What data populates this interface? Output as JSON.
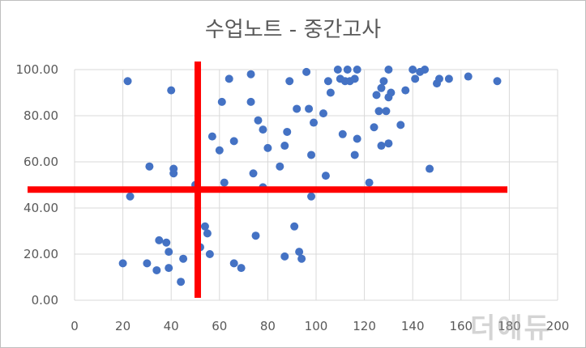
{
  "chart_data": {
    "type": "scatter",
    "title": "수업노트 - 중간고사",
    "xlabel": "",
    "ylabel": "",
    "xlim": [
      0,
      200
    ],
    "ylim": [
      0,
      100
    ],
    "x_ticks": [
      "0",
      "20",
      "40",
      "60",
      "80",
      "100",
      "120",
      "140",
      "160",
      "180",
      "200"
    ],
    "y_ticks": [
      "0.00",
      "20.00",
      "40.00",
      "60.00",
      "80.00",
      "100.00"
    ],
    "grid": "vertical-and-horizontal",
    "legend": "none",
    "point_color": "#4472c4",
    "overlay_lines": {
      "color": "#ff0000",
      "vertical_x": 51,
      "horizontal_y": 48
    },
    "points": [
      [
        20,
        16
      ],
      [
        22,
        95
      ],
      [
        23,
        45
      ],
      [
        30,
        16
      ],
      [
        31,
        58
      ],
      [
        34,
        13
      ],
      [
        35,
        26
      ],
      [
        38,
        25
      ],
      [
        39,
        14
      ],
      [
        39,
        21
      ],
      [
        40,
        91
      ],
      [
        41,
        57
      ],
      [
        41,
        55
      ],
      [
        44,
        8
      ],
      [
        45,
        18
      ],
      [
        50,
        50
      ],
      [
        52,
        23
      ],
      [
        54,
        32
      ],
      [
        55,
        29
      ],
      [
        56,
        20
      ],
      [
        57,
        71
      ],
      [
        60,
        65
      ],
      [
        61,
        86
      ],
      [
        62,
        51
      ],
      [
        64,
        96
      ],
      [
        66,
        16
      ],
      [
        66,
        69
      ],
      [
        69,
        14
      ],
      [
        73,
        98
      ],
      [
        73,
        86
      ],
      [
        74,
        55
      ],
      [
        75,
        28
      ],
      [
        76,
        78
      ],
      [
        78,
        74
      ],
      [
        78,
        49
      ],
      [
        80,
        66
      ],
      [
        85,
        58
      ],
      [
        87,
        67
      ],
      [
        87,
        19
      ],
      [
        88,
        73
      ],
      [
        89,
        95
      ],
      [
        91,
        32
      ],
      [
        92,
        83
      ],
      [
        93,
        21
      ],
      [
        94,
        18
      ],
      [
        96,
        99
      ],
      [
        97,
        83
      ],
      [
        98,
        45
      ],
      [
        98,
        63
      ],
      [
        99,
        77
      ],
      [
        103,
        81
      ],
      [
        104,
        54
      ],
      [
        105,
        95
      ],
      [
        106,
        90
      ],
      [
        109,
        100
      ],
      [
        110,
        96
      ],
      [
        111,
        72
      ],
      [
        112,
        95
      ],
      [
        113,
        100
      ],
      [
        114,
        95
      ],
      [
        116,
        96
      ],
      [
        116,
        63
      ],
      [
        117,
        70
      ],
      [
        117,
        100
      ],
      [
        122,
        51
      ],
      [
        124,
        75
      ],
      [
        125,
        89
      ],
      [
        126,
        82
      ],
      [
        127,
        67
      ],
      [
        127,
        92
      ],
      [
        128,
        95
      ],
      [
        129,
        82
      ],
      [
        130,
        100
      ],
      [
        130,
        68
      ],
      [
        130,
        88
      ],
      [
        131,
        90
      ],
      [
        135,
        76
      ],
      [
        137,
        91
      ],
      [
        140,
        100
      ],
      [
        141,
        96
      ],
      [
        143,
        99
      ],
      [
        145,
        100
      ],
      [
        147,
        57
      ],
      [
        150,
        94
      ],
      [
        151,
        96
      ],
      [
        155,
        96
      ],
      [
        163,
        97
      ],
      [
        175,
        95
      ]
    ]
  },
  "watermark": {
    "text": "더에듀"
  }
}
